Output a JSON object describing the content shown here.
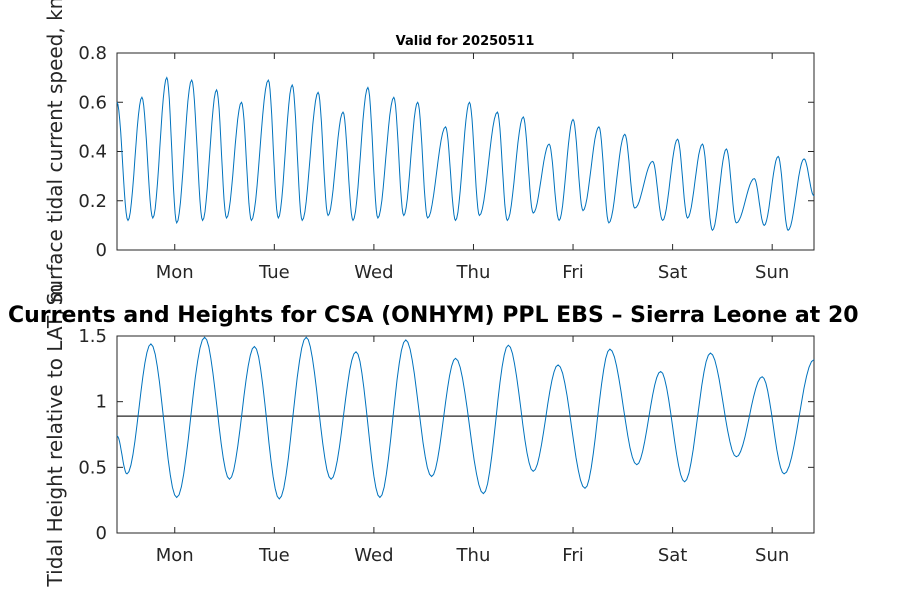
{
  "figure": {
    "main_title": "Currents and Heights for CSA (ONHYM) PPL EBS  – Sierra Leone at 20",
    "subtitle": "Valid for 20250511"
  },
  "colors": {
    "series": "#0072bd",
    "axes": "#262626",
    "reference_line": "#262626"
  },
  "chart_data": [
    {
      "type": "line",
      "name": "current",
      "title": "Valid for 20250511",
      "ylabel": "Surface tidal current speed, kn",
      "xlabel": "",
      "x_unit": "days",
      "x_tick_labels": [
        "Mon",
        "Tue",
        "Wed",
        "Thu",
        "Fri",
        "Sat",
        "Sun"
      ],
      "x_tick_days": [
        0,
        1,
        2,
        3,
        4,
        5,
        6
      ],
      "xlim": [
        -0.58,
        6.42
      ],
      "ylim": [
        0,
        0.8
      ],
      "y_ticks": [
        0,
        0.2,
        0.4,
        0.6,
        0.8
      ],
      "y_tick_labels": [
        "0",
        "0.2",
        "0.4",
        "0.6",
        "0.8"
      ],
      "grid": false,
      "series": [
        {
          "x": [
            -0.58,
            -0.47,
            -0.33,
            -0.22,
            -0.08,
            0.02,
            0.17,
            0.28,
            0.42,
            0.52,
            0.67,
            0.77,
            0.94,
            1.04,
            1.18,
            1.28,
            1.44,
            1.54,
            1.69,
            1.79,
            1.94,
            2.04,
            2.2,
            2.3,
            2.44,
            2.54,
            2.72,
            2.82,
            2.96,
            3.06,
            3.24,
            3.34,
            3.5,
            3.6,
            3.76,
            3.86,
            4.0,
            4.1,
            4.26,
            4.36,
            4.52,
            4.62,
            4.8,
            4.9,
            5.05,
            5.15,
            5.3,
            5.4,
            5.54,
            5.64,
            5.82,
            5.92,
            6.06,
            6.16,
            6.32,
            6.42
          ],
          "y": [
            0.6,
            0.12,
            0.62,
            0.13,
            0.7,
            0.11,
            0.69,
            0.12,
            0.65,
            0.13,
            0.6,
            0.12,
            0.69,
            0.13,
            0.67,
            0.12,
            0.64,
            0.14,
            0.56,
            0.12,
            0.66,
            0.13,
            0.62,
            0.14,
            0.6,
            0.13,
            0.5,
            0.12,
            0.6,
            0.14,
            0.56,
            0.12,
            0.54,
            0.15,
            0.43,
            0.12,
            0.53,
            0.16,
            0.5,
            0.11,
            0.47,
            0.17,
            0.36,
            0.12,
            0.45,
            0.13,
            0.43,
            0.08,
            0.41,
            0.11,
            0.29,
            0.1,
            0.38,
            0.08,
            0.37,
            0.22
          ]
        }
      ]
    },
    {
      "type": "line",
      "name": "height",
      "title": "",
      "ylabel": "Tidal Height relative to LAT, m",
      "xlabel": "",
      "x_unit": "days",
      "x_tick_labels": [
        "Mon",
        "Tue",
        "Wed",
        "Thu",
        "Fri",
        "Sat",
        "Sun"
      ],
      "x_tick_days": [
        0,
        1,
        2,
        3,
        4,
        5,
        6
      ],
      "xlim": [
        -0.58,
        6.42
      ],
      "ylim": [
        0,
        1.5
      ],
      "y_ticks": [
        0,
        0.5,
        1,
        1.5
      ],
      "y_tick_labels": [
        "0",
        "0.5",
        "1",
        "1.5"
      ],
      "grid": false,
      "reference_line_y": 0.89,
      "series": [
        {
          "x": [
            -0.58,
            -0.48,
            -0.24,
            0.02,
            0.3,
            0.55,
            0.8,
            1.05,
            1.32,
            1.57,
            1.82,
            2.06,
            2.32,
            2.58,
            2.82,
            3.1,
            3.35,
            3.6,
            3.85,
            4.12,
            4.37,
            4.64,
            4.88,
            5.12,
            5.38,
            5.64,
            5.9,
            6.12,
            6.42
          ],
          "y": [
            0.74,
            0.45,
            1.44,
            0.27,
            1.49,
            0.41,
            1.42,
            0.26,
            1.49,
            0.41,
            1.38,
            0.27,
            1.47,
            0.43,
            1.33,
            0.3,
            1.43,
            0.47,
            1.28,
            0.34,
            1.4,
            0.52,
            1.23,
            0.39,
            1.37,
            0.58,
            1.19,
            0.45,
            1.32
          ]
        }
      ]
    }
  ]
}
